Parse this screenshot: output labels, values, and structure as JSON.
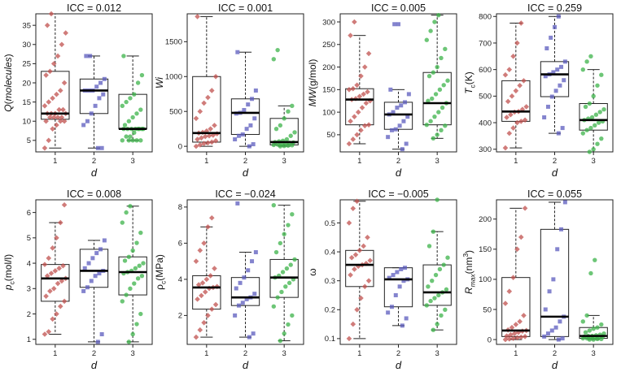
{
  "figure": {
    "x_tick_labels": [
      "1",
      "2",
      "3"
    ],
    "series_colors": [
      "#c0504d",
      "#5b5bbd",
      "#3cb34a"
    ],
    "marker_shapes": [
      "diamond",
      "square",
      "circle"
    ]
  },
  "chart_data": [
    {
      "type": "box",
      "title": "ICC = 0.012",
      "ylabel_parts": [
        {
          "t": "Q",
          "i": true
        },
        {
          "t": "(",
          "i": false
        },
        {
          "t": "molecules",
          "i": true
        },
        {
          "t": ")",
          "i": false
        }
      ],
      "xlabel": "d",
      "ylim": [
        2,
        38
      ],
      "yticks": [
        5,
        10,
        15,
        20,
        25,
        30,
        35
      ],
      "groups": [
        {
          "name": "1",
          "q1": 10.5,
          "median": 12,
          "q3": 23,
          "whisker_low": 3,
          "whisker_high": 38,
          "points": [
            3,
            5,
            8,
            9,
            10,
            10,
            10,
            11,
            11,
            11,
            11,
            12,
            12,
            12,
            12,
            13,
            13,
            14,
            15,
            16,
            17,
            18,
            20,
            22,
            23,
            25,
            27,
            30,
            33,
            35,
            38
          ]
        },
        {
          "name": "2",
          "q1": 12,
          "median": 18,
          "q3": 21,
          "whisker_low": 3,
          "whisker_high": 27,
          "points": [
            3,
            3,
            9,
            10,
            12,
            14,
            16,
            17,
            18,
            18,
            18,
            19,
            20,
            21,
            27,
            27
          ]
        },
        {
          "name": "3",
          "q1": 8,
          "median": 8,
          "q3": 17,
          "whisker_low": 5,
          "whisker_high": 27,
          "points": [
            5,
            5,
            5,
            5,
            5,
            6,
            6,
            7,
            8,
            8,
            8,
            8,
            8,
            8,
            8,
            8,
            9,
            10,
            11,
            12,
            13,
            14,
            15,
            16,
            17,
            20,
            22,
            27
          ]
        }
      ]
    },
    {
      "type": "box",
      "title": "ICC = 0.001",
      "ylabel_parts": [
        {
          "t": "Wi",
          "i": true
        }
      ],
      "xlabel": "d",
      "ylim": [
        -80,
        1900
      ],
      "yticks": [
        0,
        500,
        1000,
        1500
      ],
      "groups": [
        {
          "name": "1",
          "q1": 60,
          "median": 190,
          "q3": 1000,
          "whisker_low": 0,
          "whisker_high": 1860,
          "points": [
            0,
            20,
            40,
            50,
            60,
            80,
            100,
            120,
            140,
            150,
            160,
            180,
            190,
            200,
            220,
            250,
            300,
            400,
            500,
            620,
            700,
            800,
            1000,
            1860
          ]
        },
        {
          "name": "2",
          "q1": 170,
          "median": 480,
          "q3": 680,
          "whisker_low": 0,
          "whisker_high": 1350,
          "points": [
            0,
            30,
            100,
            150,
            170,
            250,
            300,
            400,
            470,
            480,
            520,
            600,
            680,
            800,
            1350
          ]
        },
        {
          "name": "3",
          "q1": 20,
          "median": 60,
          "q3": 400,
          "whisker_low": 0,
          "whisker_high": 580,
          "points": [
            0,
            5,
            10,
            15,
            20,
            25,
            30,
            40,
            50,
            55,
            60,
            70,
            80,
            100,
            150,
            200,
            250,
            300,
            400,
            500,
            580,
            1250,
            1380
          ]
        }
      ]
    },
    {
      "type": "box",
      "title": "ICC = 0.005",
      "ylabel_parts": [
        {
          "t": "MW",
          "i": true
        },
        {
          "t": "(g/mol)",
          "i": false
        }
      ],
      "xlabel": "d",
      "ylim": [
        12,
        318
      ],
      "yticks": [
        50,
        100,
        150,
        200,
        250,
        300
      ],
      "groups": [
        {
          "name": "1",
          "q1": 72,
          "median": 128,
          "q3": 152,
          "whisker_low": 30,
          "whisker_high": 270,
          "points": [
            30,
            40,
            50,
            60,
            70,
            72,
            80,
            90,
            100,
            110,
            120,
            125,
            128,
            130,
            135,
            140,
            145,
            150,
            152,
            160,
            180,
            200,
            230,
            270,
            300
          ]
        },
        {
          "name": "2",
          "q1": 62,
          "median": 95,
          "q3": 122,
          "whisker_low": 18,
          "whisker_high": 150,
          "points": [
            18,
            30,
            45,
            60,
            62,
            70,
            80,
            90,
            95,
            100,
            110,
            115,
            122,
            140,
            150,
            295,
            295
          ]
        },
        {
          "name": "3",
          "q1": 72,
          "median": 120,
          "q3": 188,
          "whisker_low": 42,
          "whisker_high": 315,
          "points": [
            42,
            50,
            60,
            70,
            72,
            80,
            90,
            100,
            110,
            120,
            125,
            130,
            140,
            150,
            160,
            170,
            180,
            188,
            200,
            220,
            240,
            260,
            280,
            300,
            315
          ]
        }
      ]
    },
    {
      "type": "box",
      "title": "ICC = 0.259",
      "ylabel_parts": [
        {
          "t": "T",
          "i": true
        },
        {
          "t": "c",
          "i": false,
          "sub": true
        },
        {
          "t": "(K)",
          "i": false
        }
      ],
      "xlabel": "d",
      "ylim": [
        290,
        810
      ],
      "yticks": [
        300,
        400,
        500,
        600,
        700,
        800
      ],
      "groups": [
        {
          "name": "1",
          "q1": 405,
          "median": 442,
          "q3": 558,
          "whisker_low": 305,
          "whisker_high": 775,
          "points": [
            305,
            360,
            380,
            400,
            405,
            410,
            420,
            430,
            440,
            442,
            450,
            460,
            480,
            500,
            520,
            540,
            558,
            580,
            600,
            650,
            700,
            775
          ]
        },
        {
          "name": "2",
          "q1": 498,
          "median": 582,
          "q3": 630,
          "whisker_low": 360,
          "whisker_high": 800,
          "points": [
            360,
            380,
            420,
            460,
            498,
            520,
            540,
            560,
            575,
            582,
            590,
            600,
            610,
            630,
            680,
            720,
            760,
            800
          ]
        },
        {
          "name": "3",
          "q1": 372,
          "median": 410,
          "q3": 472,
          "whisker_low": 290,
          "whisker_high": 600,
          "points": [
            290,
            300,
            320,
            340,
            360,
            372,
            380,
            390,
            400,
            405,
            410,
            415,
            420,
            430,
            440,
            450,
            460,
            472,
            500,
            540,
            580,
            600,
            630,
            650
          ]
        }
      ]
    },
    {
      "type": "box",
      "title": "ICC = 0.008",
      "ylabel_parts": [
        {
          "t": "p",
          "i": true
        },
        {
          "t": "c",
          "i": false,
          "sub": true
        },
        {
          "t": "(mol/l)",
          "i": false
        }
      ],
      "xlabel": "d",
      "ylim": [
        0.8,
        6.5
      ],
      "yticks": [
        1,
        2,
        3,
        4,
        5,
        6
      ],
      "groups": [
        {
          "name": "1",
          "q1": 2.5,
          "median": 3.4,
          "q3": 3.95,
          "whisker_low": 1.2,
          "whisker_high": 5.6,
          "points": [
            1.2,
            1.3,
            1.8,
            2.0,
            2.3,
            2.5,
            2.7,
            2.9,
            3.0,
            3.2,
            3.3,
            3.4,
            3.5,
            3.6,
            3.7,
            3.8,
            3.9,
            3.95,
            4.2,
            4.6,
            5.0,
            5.6,
            6.3
          ]
        },
        {
          "name": "2",
          "q1": 3.05,
          "median": 3.7,
          "q3": 4.55,
          "whisker_low": 0.9,
          "whisker_high": 4.9,
          "points": [
            0.9,
            1.2,
            2.9,
            3.05,
            3.3,
            3.5,
            3.6,
            3.7,
            3.8,
            4.0,
            4.2,
            4.4,
            4.55,
            4.9
          ]
        },
        {
          "name": "3",
          "q1": 2.75,
          "median": 3.65,
          "q3": 4.25,
          "whisker_low": 0.9,
          "whisker_high": 6.25,
          "points": [
            0.9,
            1.2,
            1.6,
            2.0,
            2.5,
            2.75,
            3.0,
            3.2,
            3.4,
            3.5,
            3.6,
            3.65,
            3.7,
            3.8,
            3.9,
            4.0,
            4.1,
            4.25,
            4.5,
            4.8,
            5.2,
            5.6,
            6.0,
            6.25
          ]
        }
      ]
    },
    {
      "type": "box",
      "title": "ICC = −0.024",
      "ylabel_parts": [
        {
          "t": "ρ",
          "i": false
        },
        {
          "t": "c",
          "i": false,
          "sub": true
        },
        {
          "t": "(MPa)",
          "i": false
        }
      ],
      "xlabel": "d",
      "ylim": [
        0.4,
        8.4
      ],
      "yticks": [
        2,
        4,
        6,
        8
      ],
      "groups": [
        {
          "name": "1",
          "q1": 2.35,
          "median": 3.55,
          "q3": 4.2,
          "whisker_low": 0.8,
          "whisker_high": 6.9,
          "points": [
            0.8,
            1.2,
            1.6,
            2.0,
            2.35,
            2.6,
            2.9,
            3.1,
            3.3,
            3.5,
            3.55,
            3.6,
            3.7,
            3.8,
            4.0,
            4.2,
            4.6,
            5.0,
            5.6,
            6.0,
            6.9,
            7.4
          ]
        },
        {
          "name": "2",
          "q1": 2.55,
          "median": 3.0,
          "q3": 4.1,
          "whisker_low": 0.8,
          "whisker_high": 5.5,
          "points": [
            0.8,
            1.0,
            2.0,
            2.55,
            2.7,
            2.9,
            3.0,
            3.2,
            3.5,
            3.8,
            4.1,
            4.5,
            5.0,
            5.5,
            8.2
          ]
        },
        {
          "name": "3",
          "q1": 3.0,
          "median": 4.1,
          "q3": 5.1,
          "whisker_low": 0.6,
          "whisker_high": 8.1,
          "points": [
            0.6,
            1.0,
            1.5,
            2.0,
            2.5,
            3.0,
            3.3,
            3.6,
            3.8,
            4.0,
            4.1,
            4.2,
            4.4,
            4.6,
            4.8,
            5.1,
            5.5,
            6.0,
            6.5,
            7.0,
            7.6,
            8.1
          ]
        }
      ]
    },
    {
      "type": "box",
      "title": "ICC = −0.005",
      "ylabel_parts": [
        {
          "t": "ω",
          "i": false
        }
      ],
      "xlabel": "d",
      "ylim": [
        0.08,
        0.58
      ],
      "yticks": [
        0.1,
        0.2,
        0.3,
        0.4,
        0.5
      ],
      "groups": [
        {
          "name": "1",
          "q1": 0.28,
          "median": 0.355,
          "q3": 0.405,
          "whisker_low": 0.1,
          "whisker_high": 0.575,
          "points": [
            0.1,
            0.15,
            0.2,
            0.24,
            0.28,
            0.3,
            0.32,
            0.34,
            0.35,
            0.355,
            0.36,
            0.37,
            0.38,
            0.39,
            0.405,
            0.42,
            0.45,
            0.5,
            0.55,
            0.575
          ]
        },
        {
          "name": "2",
          "q1": 0.21,
          "median": 0.305,
          "q3": 0.345,
          "whisker_low": 0.145,
          "whisker_high": 0.345,
          "points": [
            0.145,
            0.17,
            0.19,
            0.21,
            0.25,
            0.28,
            0.3,
            0.305,
            0.31,
            0.32,
            0.33,
            0.34,
            0.345
          ]
        },
        {
          "name": "3",
          "q1": 0.215,
          "median": 0.26,
          "q3": 0.355,
          "whisker_low": 0.13,
          "whisker_high": 0.47,
          "points": [
            0.13,
            0.15,
            0.18,
            0.2,
            0.215,
            0.23,
            0.24,
            0.25,
            0.26,
            0.27,
            0.28,
            0.3,
            0.32,
            0.34,
            0.355,
            0.38,
            0.42,
            0.47,
            0.58
          ]
        }
      ]
    },
    {
      "type": "box",
      "title": "ICC = 0.055",
      "ylabel_parts": [
        {
          "t": "R",
          "i": true
        },
        {
          "t": "max",
          "i": true,
          "sub": true
        },
        {
          "t": "(nm",
          "i": false
        },
        {
          "t": "3",
          "i": false,
          "sup": true
        },
        {
          "t": ")",
          "i": false
        }
      ],
      "xlabel": "d",
      "ylim": [
        -8,
        232
      ],
      "yticks": [
        0,
        50,
        100,
        150,
        200
      ],
      "groups": [
        {
          "name": "1",
          "q1": 5,
          "median": 15,
          "q3": 103,
          "whisker_low": 0,
          "whisker_high": 218,
          "points": [
            0,
            1,
            2,
            3,
            4,
            5,
            6,
            8,
            10,
            12,
            14,
            15,
            16,
            20,
            25,
            30,
            40,
            60,
            80,
            103,
            150,
            170,
            218
          ]
        },
        {
          "name": "2",
          "q1": 5,
          "median": 38,
          "q3": 183,
          "whisker_low": 0,
          "whisker_high": 228,
          "points": [
            0,
            2,
            5,
            10,
            15,
            20,
            30,
            38,
            50,
            80,
            100,
            150,
            183,
            228
          ]
        },
        {
          "name": "3",
          "q1": 2,
          "median": 6,
          "q3": 20,
          "whisker_low": 0,
          "whisker_high": 40,
          "points": [
            0,
            0,
            1,
            1,
            2,
            2,
            3,
            3,
            4,
            5,
            5,
            6,
            6,
            7,
            8,
            10,
            12,
            15,
            18,
            20,
            25,
            30,
            40,
            110,
            132
          ]
        }
      ]
    }
  ]
}
